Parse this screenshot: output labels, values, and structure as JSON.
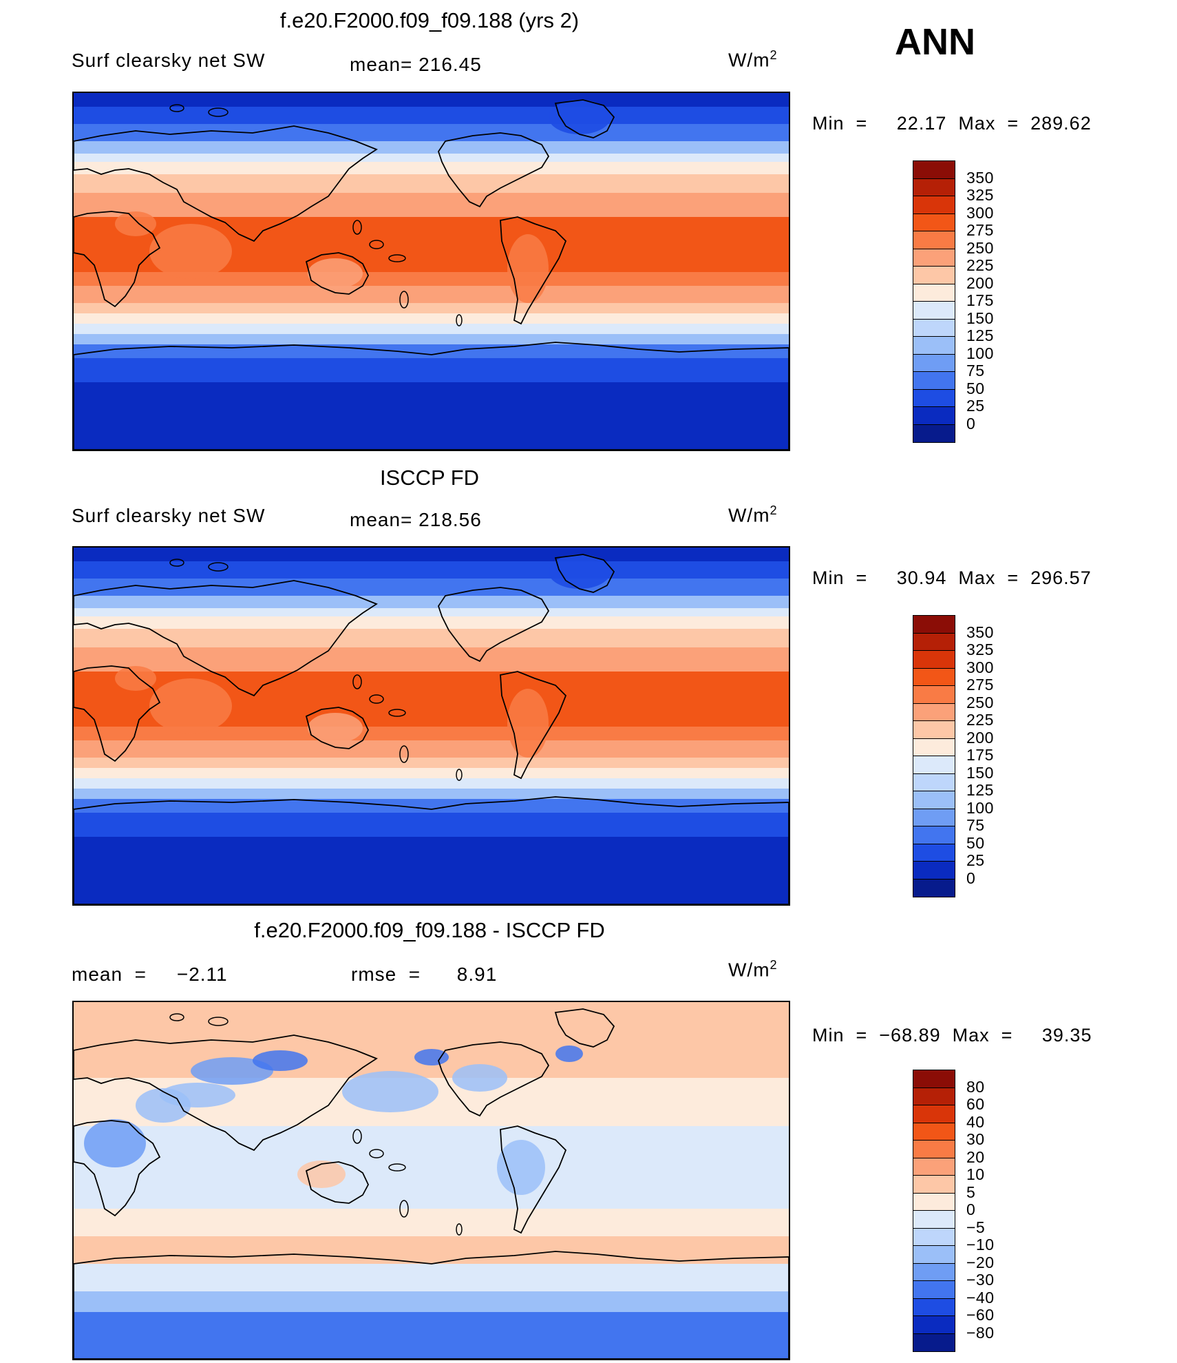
{
  "season": "ANN",
  "units_text": "W/m",
  "units_sup": "2",
  "panels": [
    {
      "title": "f.e20.F2000.f09_f09.188 (yrs 2)",
      "left_label": "Surf  clearsky  net  SW",
      "mid_label": "mean=  216.45",
      "minmax": "Min  =     22.17  Max  =  289.62",
      "colorbar_labels": [
        "350",
        "325",
        "300",
        "275",
        "250",
        "225",
        "200",
        "175",
        "150",
        "125",
        "100",
        "75",
        "50",
        "25",
        "0"
      ],
      "colorbar_colors": [
        "#8b0d06",
        "#b52006",
        "#d93509",
        "#f25617",
        "#f97b45",
        "#fba179",
        "#fdc7a7",
        "#fdebdc",
        "#dce9fa",
        "#bed6fb",
        "#9bbff8",
        "#6f9df4",
        "#4275ef",
        "#1e4de3",
        "#0a2bc0",
        "#071b8c"
      ]
    },
    {
      "title": "ISCCP FD",
      "left_label": "Surf  clearsky  net  SW",
      "mid_label": "mean=  218.56",
      "minmax": "Min  =     30.94  Max  =  296.57",
      "colorbar_labels": [
        "350",
        "325",
        "300",
        "275",
        "250",
        "225",
        "200",
        "175",
        "150",
        "125",
        "100",
        "75",
        "50",
        "25",
        "0"
      ],
      "colorbar_colors": [
        "#8b0d06",
        "#b52006",
        "#d93509",
        "#f25617",
        "#f97b45",
        "#fba179",
        "#fdc7a7",
        "#fdebdc",
        "#dce9fa",
        "#bed6fb",
        "#9bbff8",
        "#6f9df4",
        "#4275ef",
        "#1e4de3",
        "#0a2bc0",
        "#071b8c"
      ]
    },
    {
      "title": "f.e20.F2000.f09_f09.188 - ISCCP FD",
      "left_label": "mean  =     −2.11",
      "mid_label": "rmse  =      8.91",
      "minmax": "Min  =  −68.89  Max  =     39.35",
      "colorbar_labels": [
        "80",
        "60",
        "40",
        "30",
        "20",
        "10",
        "5",
        "0",
        "−5",
        "−10",
        "−20",
        "−30",
        "−40",
        "−60",
        "−80"
      ],
      "colorbar_colors": [
        "#8b0d06",
        "#b52006",
        "#d93509",
        "#f25617",
        "#f97b45",
        "#fba179",
        "#fdc7a7",
        "#fdebdc",
        "#dce9fa",
        "#bed6fb",
        "#9bbff8",
        "#6f9df4",
        "#4275ef",
        "#1e4de3",
        "#0a2bc0",
        "#071b8c"
      ]
    }
  ]
}
